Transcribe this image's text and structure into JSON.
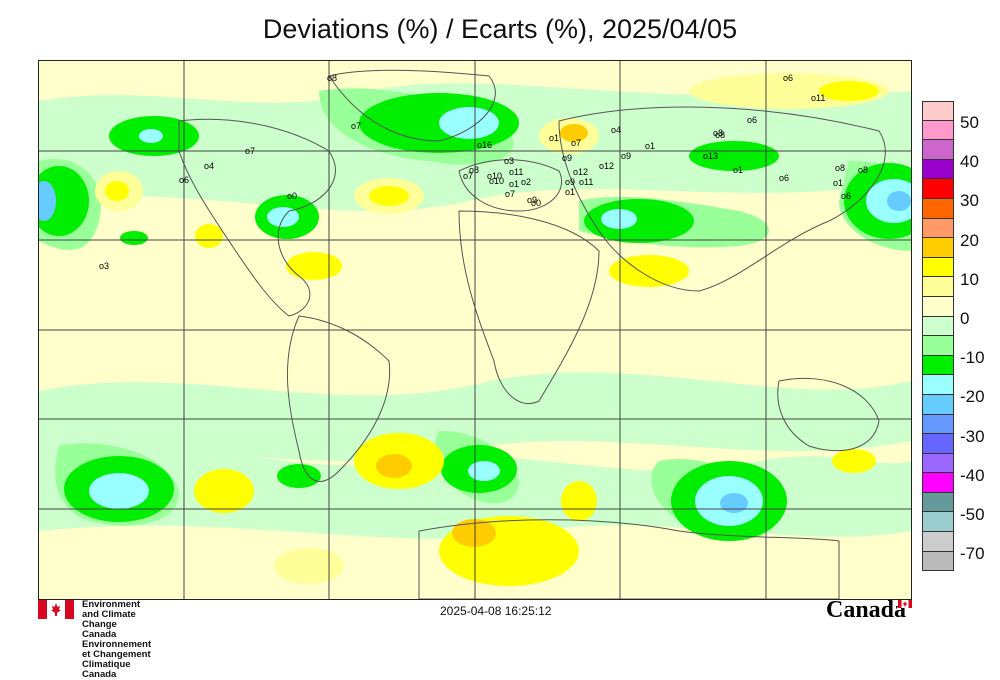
{
  "title": "Deviations (%) / Ecarts (%), 2025/04/05",
  "map": {
    "type": "world deviation map",
    "grid": true,
    "station_labels": [
      "8",
      "7",
      "4",
      "6",
      "7",
      "0",
      "3",
      "16",
      "8",
      "7",
      "10",
      "11",
      "3",
      "9",
      "1",
      "4",
      "7",
      "8",
      "6",
      "12",
      "11",
      "12",
      "1",
      "9",
      "6",
      "13",
      "1",
      "8",
      "6",
      "11",
      "1",
      "8",
      "6",
      "8",
      "1",
      "9",
      "7",
      "9",
      "0",
      "1",
      "2",
      "10"
    ],
    "colors": {
      "strong_positive": "#ffff00",
      "mild_positive": "#ffff99",
      "neutral": "#ffffcc",
      "mild_negative": "#ccffcc",
      "moderate_negative": "#99ff99",
      "strong_negative": "#00ee00",
      "very_strong_negative": "#99ffff",
      "extreme_negative": "#66ccff",
      "orange": "#ffcc00",
      "dark_orange": "#ff9933"
    }
  },
  "legend": {
    "labels": [
      "50",
      "40",
      "30",
      "20",
      "10",
      "0",
      "-10",
      "-20",
      "-30",
      "-40",
      "-50",
      "-70"
    ],
    "colors": [
      "#ffcccc",
      "#ff99cc",
      "#cc66cc",
      "#9900cc",
      "#ff0000",
      "#ff6600",
      "#ff9966",
      "#ffcc00",
      "#ffff00",
      "#ffff99",
      "#ffffcc",
      "#ccffcc",
      "#99ff99",
      "#00ee00",
      "#99ffff",
      "#66ccff",
      "#6699ff",
      "#6666ff",
      "#9966ff",
      "#ff00ff",
      "#669999",
      "#99cccc",
      "#cccccc",
      "#bbbbbb"
    ]
  },
  "footer": {
    "agency_en": "Environment and Climate Change Canada",
    "agency_fr": "Environnement et Changement Climatique Canada",
    "timestamp": "2025-04-08 16:25:12",
    "wordmark": "Canada"
  }
}
